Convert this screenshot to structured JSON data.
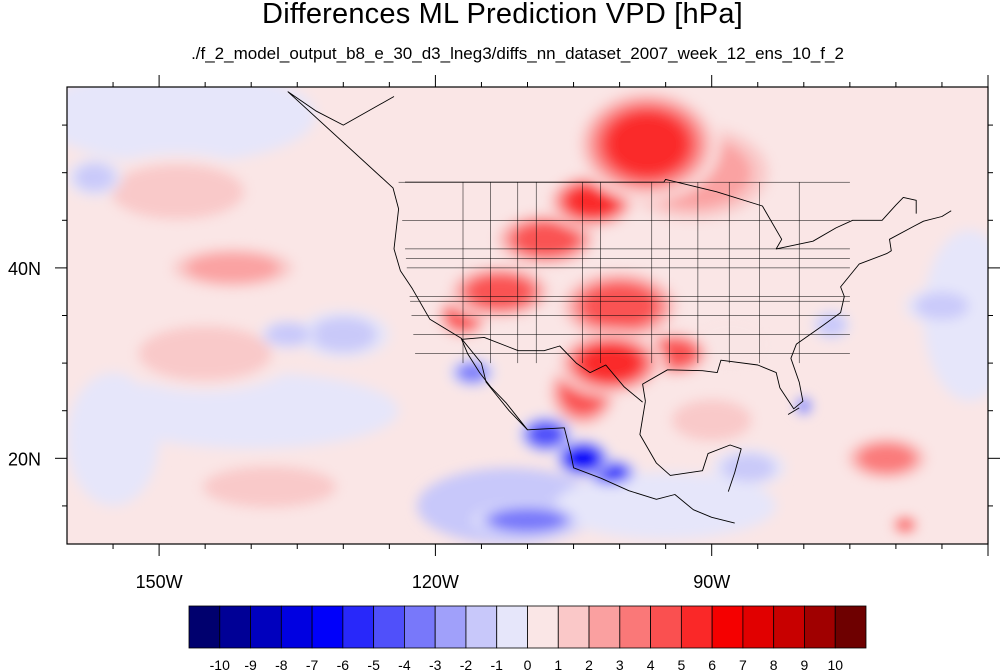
{
  "chart_data": {
    "type": "heatmap",
    "title": "Differences ML Prediction VPD [hPa]",
    "subtitle": "./f_2_model_output_b8_e_30_d3_lneg3/diffs_nn_dataset_2007_week_12_ens_10_f_2",
    "projection": "cylindrical equidistant",
    "xlim": [
      -160,
      -60
    ],
    "ylim": [
      11,
      59
    ],
    "x_ticks": [
      {
        "value": -150,
        "label": "150W"
      },
      {
        "value": -120,
        "label": "120W"
      },
      {
        "value": -90,
        "label": "90W"
      }
    ],
    "y_ticks": [
      {
        "value": 40,
        "label": "40N"
      },
      {
        "value": 20,
        "label": "20N"
      }
    ],
    "colorbar": {
      "orientation": "horizontal",
      "levels": [
        -10,
        -9,
        -8,
        -7,
        -6,
        -5,
        -4,
        -3,
        -2,
        -1,
        0,
        1,
        2,
        3,
        4,
        5,
        6,
        7,
        8,
        9,
        10
      ],
      "colors": [
        "#00006e",
        "#000096",
        "#0000be",
        "#0000e1",
        "#0000fa",
        "#2828fa",
        "#5050fa",
        "#7878fa",
        "#a0a0fa",
        "#c8c8fa",
        "#e6e6fa",
        "#fae6e6",
        "#fac8c8",
        "#faa0a0",
        "#fa7878",
        "#fa5050",
        "#fa2828",
        "#f50000",
        "#e10000",
        "#c80000",
        "#a00000",
        "#6e0000"
      ]
    },
    "regions": [
      {
        "lon": -97,
        "lat": 53,
        "value": 5.5,
        "rx": 8,
        "ry": 6
      },
      {
        "lon": -103,
        "lat": 47,
        "value": 5.0,
        "rx": 5,
        "ry": 3
      },
      {
        "lon": -108,
        "lat": 43,
        "value": 4.5,
        "rx": 6,
        "ry": 3
      },
      {
        "lon": -113,
        "lat": 37.5,
        "value": 4.5,
        "rx": 6,
        "ry": 3
      },
      {
        "lon": -117,
        "lat": 35,
        "value": 4.0,
        "rx": 3,
        "ry": 2.5
      },
      {
        "lon": -100,
        "lat": 36,
        "value": 4.5,
        "rx": 7,
        "ry": 4
      },
      {
        "lon": -101,
        "lat": 30,
        "value": 5.0,
        "rx": 6,
        "ry": 3.5
      },
      {
        "lon": -94,
        "lat": 31,
        "value": 4.5,
        "rx": 4,
        "ry": 2.5
      },
      {
        "lon": -104,
        "lat": 27,
        "value": 4.0,
        "rx": 4,
        "ry": 4
      },
      {
        "lon": -142,
        "lat": 40,
        "value": 2.5,
        "rx": 8,
        "ry": 2.5
      },
      {
        "lon": -148,
        "lat": 48,
        "value": 1.5,
        "rx": 10,
        "ry": 4
      },
      {
        "lon": -92,
        "lat": 50,
        "value": 2.5,
        "rx": 10,
        "ry": 6
      },
      {
        "lon": -90,
        "lat": 24,
        "value": 1.5,
        "rx": 6,
        "ry": 3
      },
      {
        "lon": -71,
        "lat": 20,
        "value": 3.5,
        "rx": 5,
        "ry": 2.5
      },
      {
        "lon": -69,
        "lat": 13,
        "value": 4.5,
        "rx": 1.5,
        "ry": 1
      },
      {
        "lon": -145,
        "lat": 31,
        "value": 1.5,
        "rx": 10,
        "ry": 4
      },
      {
        "lon": -138,
        "lat": 17,
        "value": 1.5,
        "rx": 10,
        "ry": 3
      },
      {
        "lon": -104,
        "lat": 20,
        "value": -7.0,
        "rx": 3,
        "ry": 2
      },
      {
        "lon": -108,
        "lat": 22.5,
        "value": -5.0,
        "rx": 3,
        "ry": 2
      },
      {
        "lon": -101,
        "lat": 18.5,
        "value": -5.5,
        "rx": 3,
        "ry": 1.5
      },
      {
        "lon": -116,
        "lat": 29,
        "value": -3.5,
        "rx": 2.5,
        "ry": 1.5
      },
      {
        "lon": -110,
        "lat": 13.5,
        "value": -4.0,
        "rx": 6,
        "ry": 1.8
      },
      {
        "lon": -80,
        "lat": 25.5,
        "value": -4.0,
        "rx": 1,
        "ry": 1
      },
      {
        "lon": -77,
        "lat": 34,
        "value": -2.0,
        "rx": 2,
        "ry": 1.5
      },
      {
        "lon": -65,
        "lat": 36,
        "value": -1.5,
        "rx": 4,
        "ry": 2
      },
      {
        "lon": -130,
        "lat": 33,
        "value": -1.5,
        "rx": 5,
        "ry": 2.5
      },
      {
        "lon": -136,
        "lat": 33,
        "value": -2.0,
        "rx": 3,
        "ry": 1.5
      },
      {
        "lon": -86,
        "lat": 19,
        "value": -1.5,
        "rx": 4,
        "ry": 2
      },
      {
        "lon": -157,
        "lat": 49.5,
        "value": -1.5,
        "rx": 3,
        "ry": 2
      },
      {
        "lon": -88,
        "lat": 32,
        "value": 0.5,
        "rx": 6,
        "ry": 4
      }
    ],
    "background": [
      {
        "lon": -148,
        "lat": 56,
        "value": -0.5,
        "rx": 15,
        "ry": 5
      },
      {
        "lon": -140,
        "lat": 25,
        "value": -0.5,
        "rx": 16,
        "ry": 4
      },
      {
        "lon": -112,
        "lat": 15,
        "value": -1.5,
        "rx": 10,
        "ry": 4
      },
      {
        "lon": -95,
        "lat": 15,
        "value": -0.5,
        "rx": 12,
        "ry": 3.5
      },
      {
        "lon": -62,
        "lat": 35,
        "value": -0.5,
        "rx": 5,
        "ry": 9
      },
      {
        "lon": -155,
        "lat": 22,
        "value": -0.5,
        "rx": 5,
        "ry": 7
      }
    ],
    "land_outline": {
      "coast": [
        [
          -124.5,
          58
        ],
        [
          -130,
          55
        ],
        [
          -133,
          56.5
        ],
        [
          -136,
          58.5
        ],
        [
          -124.6,
          48.4
        ],
        [
          -124,
          46.2
        ],
        [
          -124.5,
          42
        ],
        [
          -123.8,
          39.7
        ],
        [
          -122.5,
          37.8
        ],
        [
          -120.6,
          34.6
        ],
        [
          -117.2,
          32.6
        ],
        [
          -115,
          30
        ],
        [
          -114.5,
          28
        ],
        [
          -112,
          25
        ],
        [
          -110,
          23
        ],
        [
          -106,
          23.2
        ],
        [
          -105.3,
          20.5
        ],
        [
          -105,
          19
        ],
        [
          -102,
          17.9
        ],
        [
          -99,
          16.6
        ],
        [
          -96,
          15.7
        ],
        [
          -94,
          16.2
        ],
        [
          -92,
          14.6
        ],
        [
          -90,
          13.8
        ],
        [
          -87.5,
          13.2
        ]
      ],
      "gulf": [
        [
          -97.2,
          26
        ],
        [
          -97.5,
          27.8
        ],
        [
          -94.8,
          29.3
        ],
        [
          -91,
          29.2
        ],
        [
          -89.4,
          29
        ],
        [
          -89,
          30.3
        ],
        [
          -85,
          29.8
        ],
        [
          -83,
          29
        ],
        [
          -82.6,
          27.4
        ],
        [
          -81.1,
          25.2
        ],
        [
          -80.1,
          26
        ],
        [
          -80.5,
          28
        ],
        [
          -81.4,
          30.5
        ],
        [
          -80.8,
          32
        ],
        [
          -78,
          33.9
        ],
        [
          -76,
          35.3
        ],
        [
          -75.6,
          37
        ],
        [
          -76,
          38
        ],
        [
          -74,
          40.4
        ],
        [
          -71,
          41.5
        ],
        [
          -70.5,
          41.8
        ],
        [
          -70.7,
          43
        ],
        [
          -68,
          44.4
        ],
        [
          -67,
          44.9
        ],
        [
          -65,
          45.4
        ],
        [
          -64,
          46
        ]
      ],
      "mexico_gulf": [
        [
          -97.2,
          26
        ],
        [
          -97.8,
          22.5
        ],
        [
          -96,
          19.5
        ],
        [
          -94.5,
          18.2
        ],
        [
          -91,
          18.7
        ],
        [
          -90.4,
          20.5
        ],
        [
          -88,
          21.4
        ],
        [
          -86.8,
          21
        ],
        [
          -87.5,
          18.5
        ],
        [
          -88.2,
          16.5
        ]
      ],
      "baja": [
        [
          -117.2,
          32.6
        ],
        [
          -116.5,
          31
        ],
        [
          -115.2,
          29
        ],
        [
          -114,
          27.5
        ],
        [
          -112.3,
          25.8
        ],
        [
          -110,
          23
        ]
      ],
      "florida_keys": [
        [
          -80.5,
          25.3
        ],
        [
          -81.7,
          24.6
        ]
      ],
      "us_north_border": [
        [
          -123.3,
          49
        ],
        [
          -95.2,
          49
        ],
        [
          -95,
          49.3
        ],
        [
          -89.5,
          48
        ],
        [
          -84.5,
          46.5
        ],
        [
          -82.4,
          43
        ],
        [
          -83,
          42
        ],
        [
          -79,
          42.8
        ],
        [
          -76.5,
          44.2
        ],
        [
          -74.7,
          45
        ],
        [
          -71.5,
          45
        ],
        [
          -70,
          46.6
        ],
        [
          -69.2,
          47.4
        ],
        [
          -67.8,
          47.1
        ],
        [
          -67.8,
          45.7
        ]
      ],
      "us_south_border": [
        [
          -117.1,
          32.5
        ],
        [
          -114.7,
          32.7
        ],
        [
          -111,
          31.3
        ],
        [
          -108.2,
          31.3
        ],
        [
          -106.5,
          31.8
        ],
        [
          -104.7,
          30
        ],
        [
          -103.2,
          29
        ],
        [
          -101.5,
          29.8
        ],
        [
          -99.5,
          27.5
        ],
        [
          -97.5,
          25.9
        ]
      ]
    },
    "states_h": [
      49,
      45,
      42,
      41,
      40,
      37,
      36.5,
      35,
      33,
      31
    ],
    "states_v": [
      -117,
      -114,
      -111.05,
      -109.05,
      -104.05,
      -102.05,
      -96.5,
      -94.6,
      -91.5,
      -88.1,
      -84.8,
      -80.5
    ]
  }
}
